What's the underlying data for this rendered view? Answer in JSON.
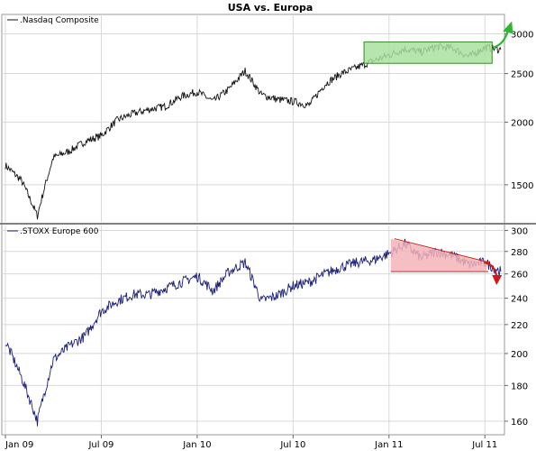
{
  "title": "USA vs. Europa",
  "colors": {
    "nasdaq_line": "#111111",
    "stoxx_line": "#1b1f7a",
    "green_box_fill": "#a9e2a0",
    "green_box_stroke": "#3a8a2c",
    "green_arrow": "#2fb52f",
    "red_fill": "#f4b4b8",
    "red_stroke": "#cc2a2a",
    "red_arrow": "#d21818",
    "grid": "#d8d8d8",
    "separator": "#808080"
  },
  "x_axis": {
    "ticks": [
      "Jan 09",
      "Jul 09",
      "Jan 10",
      "Jul 10",
      "Jan 11",
      "Jul 11"
    ]
  },
  "chart_data": [
    {
      "type": "line",
      "series": [
        {
          "name": ".Nasdaq Composite"
        }
      ],
      "scale": "log",
      "yticks": [
        1500,
        2000,
        2500,
        3000
      ],
      "ylim": [
        1265,
        3280
      ],
      "grid": true,
      "legend_position": "top-left",
      "x": [
        "Jan 09",
        "Feb 09",
        "Mar 09",
        "Apr 09",
        "May 09",
        "Jun 09",
        "Jul 09",
        "Aug 09",
        "Sep 09",
        "Oct 09",
        "Nov 09",
        "Dec 09",
        "Jan 10",
        "Feb 10",
        "Mar 10",
        "Apr 10",
        "May 10",
        "Jun 10",
        "Jul 10",
        "Aug 10",
        "Sep 10",
        "Oct 10",
        "Nov 10",
        "Dec 10",
        "Jan 11",
        "Feb 11",
        "Mar 11",
        "Apr 11",
        "May 11",
        "Jun 11",
        "Jul 11",
        "Aug 11"
      ],
      "values": [
        1640,
        1530,
        1300,
        1700,
        1750,
        1830,
        1880,
        2020,
        2080,
        2120,
        2150,
        2250,
        2300,
        2200,
        2330,
        2530,
        2270,
        2220,
        2200,
        2160,
        2380,
        2500,
        2570,
        2650,
        2720,
        2800,
        2760,
        2830,
        2810,
        2700,
        2820,
        2790
      ],
      "annotations": [
        "green consolidation box (approx. 2620–2890)",
        "upward green arrow"
      ]
    },
    {
      "type": "line",
      "series": [
        {
          "name": ".STOXX Europe 600"
        }
      ],
      "scale": "log",
      "yticks": [
        160,
        180,
        200,
        220,
        240,
        260,
        280,
        300
      ],
      "ylim": [
        153,
        305
      ],
      "grid": true,
      "legend_position": "top-left",
      "x": [
        "Jan 09",
        "Feb 09",
        "Mar 09",
        "Apr 09",
        "May 09",
        "Jun 09",
        "Jul 09",
        "Aug 09",
        "Sep 09",
        "Oct 09",
        "Nov 09",
        "Dec 09",
        "Jan 10",
        "Feb 10",
        "Mar 10",
        "Apr 10",
        "May 10",
        "Jun 10",
        "Jul 10",
        "Aug 10",
        "Sep 10",
        "Oct 10",
        "Nov 10",
        "Dec 10",
        "Jan 11",
        "Feb 11",
        "Mar 11",
        "Apr 11",
        "May 11",
        "Jun 11",
        "Jul 11",
        "Aug 11"
      ],
      "values": [
        208,
        185,
        160,
        196,
        205,
        212,
        230,
        238,
        243,
        243,
        248,
        253,
        258,
        246,
        262,
        270,
        238,
        242,
        250,
        253,
        260,
        266,
        270,
        272,
        278,
        287,
        274,
        280,
        276,
        268,
        270,
        262
      ],
      "annotations": [
        "red descending triangle (support ~262, resistance 292 → 270)",
        "downward red arrow"
      ]
    }
  ]
}
